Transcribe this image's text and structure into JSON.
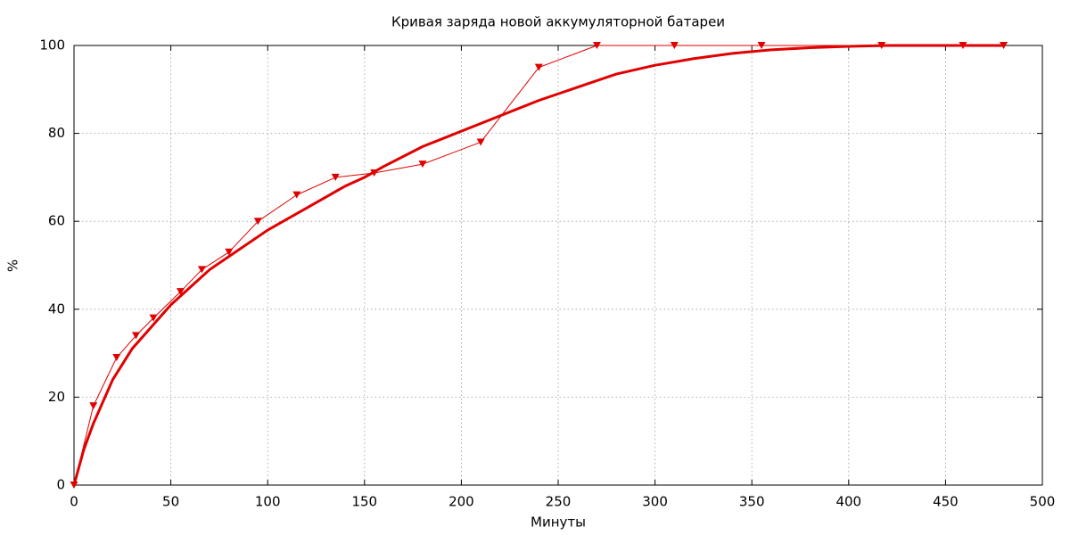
{
  "chart_data": {
    "type": "line",
    "title": "Кривая заряда новой аккумуляторной батареи",
    "x_label": "Минуты",
    "y_label": "%",
    "xlim": [
      0,
      500
    ],
    "ylim": [
      0,
      100
    ],
    "xticks": [
      0,
      50,
      100,
      150,
      200,
      250,
      300,
      350,
      400,
      450,
      500
    ],
    "yticks": [
      0,
      20,
      40,
      60,
      80,
      100
    ],
    "grid": true,
    "series": [
      {
        "color": "#e00000",
        "line_width": 1,
        "marker": "triangle-down",
        "x": [
          0,
          10,
          22,
          32,
          41,
          55,
          66,
          80,
          95,
          115,
          135,
          155,
          180,
          210,
          240,
          270,
          310,
          355,
          417,
          459,
          480
        ],
        "values": [
          0,
          18,
          29,
          34,
          38,
          44,
          49,
          53,
          60,
          66,
          70,
          71,
          73,
          78,
          95,
          100,
          100,
          100,
          100,
          100,
          100
        ]
      },
      {
        "color": "#e00000",
        "line_width": 3,
        "x": [
          0,
          5,
          10,
          20,
          30,
          40,
          50,
          60,
          70,
          80,
          100,
          120,
          140,
          150,
          160,
          180,
          200,
          220,
          240,
          260,
          280,
          300,
          320,
          340,
          360,
          380,
          400,
          420,
          450,
          480
        ],
        "values": [
          0,
          8,
          14,
          24,
          31,
          36,
          41,
          45,
          49,
          52,
          58,
          63,
          68,
          70,
          72.5,
          77,
          80.5,
          84,
          87.5,
          90.5,
          93.5,
          95.5,
          97,
          98.2,
          99,
          99.5,
          99.8,
          100,
          100,
          100
        ]
      }
    ]
  }
}
